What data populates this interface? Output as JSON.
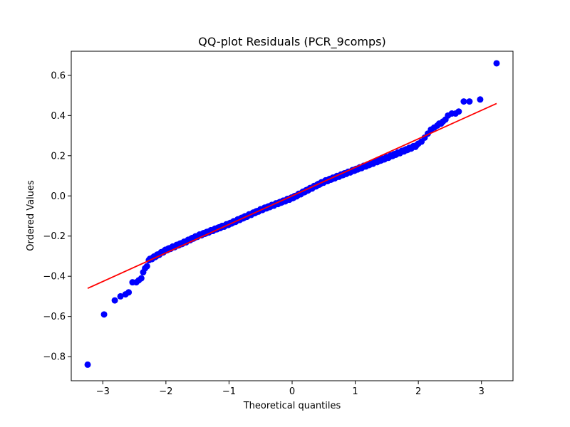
{
  "chart_data": {
    "type": "scatter",
    "title": "QQ-plot Residuals (PCR_9comps)",
    "xlabel": "Theoretical quantiles",
    "ylabel": "Ordered Values",
    "xlim": [
      -3.5,
      3.5
    ],
    "ylim": [
      -0.92,
      0.72
    ],
    "xticks": [
      -3,
      -2,
      -1,
      0,
      1,
      2,
      3
    ],
    "yticks": [
      -0.8,
      -0.6,
      -0.4,
      -0.2,
      0.0,
      0.2,
      0.4,
      0.6
    ],
    "xtick_labels": [
      "−3",
      "−2",
      "−1",
      "0",
      "1",
      "2",
      "3"
    ],
    "ytick_labels": [
      "−0.8",
      "−0.6",
      "−0.4",
      "−0.2",
      "0.0",
      "0.2",
      "0.4",
      "0.6"
    ],
    "grid": false,
    "marker_color": "#0000ff",
    "line_color": "#ff0000",
    "fit_line": {
      "x": [
        -3.24,
        3.24
      ],
      "y": [
        -0.46,
        0.46
      ]
    },
    "points": {
      "x": [
        -3.24,
        -2.98,
        -2.81,
        -2.72,
        -2.64,
        -2.59,
        -2.53,
        -2.47,
        -2.43,
        -2.39,
        -2.36,
        -2.33,
        -2.3,
        3.24,
        2.98,
        2.81,
        2.72,
        2.64,
        2.59,
        2.53,
        2.47,
        2.43,
        2.39,
        2.36,
        2.33,
        2.3,
        2.25,
        2.2,
        2.15,
        2.1,
        2.05,
        2.0
      ],
      "y": [
        -0.84,
        -0.59,
        -0.52,
        -0.5,
        -0.49,
        -0.48,
        -0.43,
        -0.43,
        -0.42,
        -0.41,
        -0.38,
        -0.36,
        -0.35,
        0.66,
        0.48,
        0.47,
        0.47,
        0.42,
        0.41,
        0.41,
        0.4,
        0.38,
        0.37,
        0.36,
        0.36,
        0.35,
        0.34,
        0.33,
        0.31,
        0.29,
        0.27,
        0.26
      ]
    },
    "dense_band": {
      "x_range": [
        -2.27,
        1.97
      ],
      "knots_x": [
        -2.27,
        -2.0,
        -1.7,
        -1.5,
        -1.0,
        -0.5,
        0.0,
        0.5,
        1.0,
        1.5,
        1.97
      ],
      "knots_y": [
        -0.32,
        -0.27,
        -0.23,
        -0.2,
        -0.14,
        -0.07,
        -0.01,
        0.07,
        0.13,
        0.19,
        0.25
      ],
      "count": 260
    }
  }
}
